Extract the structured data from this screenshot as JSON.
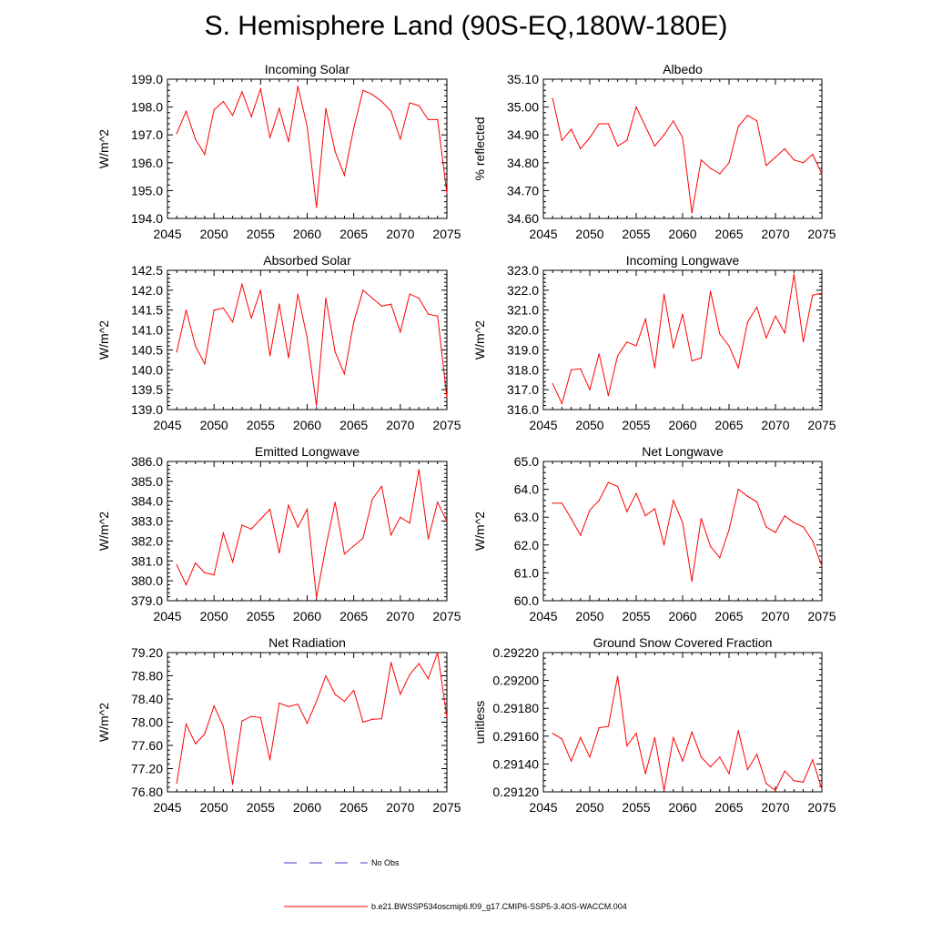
{
  "figure_title": "S. Hemisphere Land (90S-EQ,180W-180E)",
  "legend": {
    "obs_label": "No Obs",
    "model_label": "b.e21.BWSSP534oscmip6.f09_g17.CMIP6-SSP5-3.4OS-WACCM.004",
    "obs_color": "#3b3bcf",
    "model_color": "#ff0000"
  },
  "chart_data": [
    {
      "type": "line",
      "title": "Incoming Solar",
      "ylabel": "W/m^2",
      "xlim": [
        2045,
        2075
      ],
      "ylim": [
        194.0,
        199.0
      ],
      "yticks": [
        "194.0",
        "195.0",
        "196.0",
        "197.0",
        "198.0",
        "199.0"
      ],
      "xticks": [
        "2045",
        "2050",
        "2055",
        "2060",
        "2065",
        "2070",
        "2075"
      ],
      "x": [
        2046,
        2047,
        2048,
        2049,
        2050,
        2051,
        2052,
        2053,
        2054,
        2055,
        2056,
        2057,
        2058,
        2059,
        2060,
        2061,
        2062,
        2063,
        2064,
        2065,
        2066,
        2067,
        2068,
        2069,
        2070,
        2071,
        2072,
        2073,
        2074,
        2075
      ],
      "values": [
        197.05,
        197.85,
        196.85,
        196.3,
        197.9,
        198.2,
        197.7,
        198.55,
        197.65,
        198.65,
        196.9,
        197.95,
        196.75,
        198.75,
        197.3,
        194.4,
        197.95,
        196.4,
        195.55,
        197.25,
        198.6,
        198.45,
        198.2,
        197.85,
        196.85,
        198.15,
        198.05,
        197.55,
        197.55,
        194.9
      ],
      "series_name": "b.e21.BWSSP534oscmip6.f09_g17.CMIP6-SSP5-3.4OS-WACCM.004"
    },
    {
      "type": "line",
      "title": "Albedo",
      "ylabel": "% reflected",
      "xlim": [
        2045,
        2075
      ],
      "ylim": [
        34.6,
        35.1
      ],
      "yticks": [
        "34.60",
        "34.70",
        "34.80",
        "34.90",
        "35.00",
        "35.10"
      ],
      "xticks": [
        "2045",
        "2050",
        "2055",
        "2060",
        "2065",
        "2070",
        "2075"
      ],
      "x": [
        2046,
        2047,
        2048,
        2049,
        2050,
        2051,
        2052,
        2053,
        2054,
        2055,
        2056,
        2057,
        2058,
        2059,
        2060,
        2061,
        2062,
        2063,
        2064,
        2065,
        2066,
        2067,
        2068,
        2069,
        2070,
        2071,
        2072,
        2073,
        2074,
        2075
      ],
      "values": [
        35.03,
        34.88,
        34.92,
        34.85,
        34.89,
        34.94,
        34.94,
        34.86,
        34.88,
        35.0,
        34.93,
        34.86,
        34.9,
        34.95,
        34.89,
        34.62,
        34.81,
        34.78,
        34.76,
        34.8,
        34.93,
        34.97,
        34.95,
        34.79,
        34.82,
        34.85,
        34.81,
        34.8,
        34.83,
        34.76
      ],
      "series_name": "b.e21.BWSSP534oscmip6.f09_g17.CMIP6-SSP5-3.4OS-WACCM.004"
    },
    {
      "type": "line",
      "title": "Absorbed Solar",
      "ylabel": "W/m^2",
      "xlim": [
        2045,
        2075
      ],
      "ylim": [
        139.0,
        142.5
      ],
      "yticks": [
        "139.0",
        "139.5",
        "140.0",
        "140.5",
        "141.0",
        "141.5",
        "142.0",
        "142.5"
      ],
      "xticks": [
        "2045",
        "2050",
        "2055",
        "2060",
        "2065",
        "2070",
        "2075"
      ],
      "x": [
        2046,
        2047,
        2048,
        2049,
        2050,
        2051,
        2052,
        2053,
        2054,
        2055,
        2056,
        2057,
        2058,
        2059,
        2060,
        2061,
        2062,
        2063,
        2064,
        2065,
        2066,
        2067,
        2068,
        2069,
        2070,
        2071,
        2072,
        2073,
        2074,
        2075
      ],
      "values": [
        140.45,
        141.5,
        140.6,
        140.15,
        141.5,
        141.55,
        141.2,
        142.15,
        141.3,
        142.0,
        140.35,
        141.65,
        140.3,
        141.9,
        140.8,
        139.1,
        141.8,
        140.45,
        139.9,
        141.2,
        142.0,
        141.8,
        141.6,
        141.65,
        140.95,
        141.9,
        141.8,
        141.4,
        141.35,
        139.3
      ],
      "series_name": "b.e21.BWSSP534oscmip6.f09_g17.CMIP6-SSP5-3.4OS-WACCM.004"
    },
    {
      "type": "line",
      "title": "Incoming Longwave",
      "ylabel": "W/m^2",
      "xlim": [
        2045,
        2075
      ],
      "ylim": [
        316.0,
        323.0
      ],
      "yticks": [
        "316.0",
        "317.0",
        "318.0",
        "319.0",
        "320.0",
        "321.0",
        "322.0",
        "323.0"
      ],
      "xticks": [
        "2045",
        "2050",
        "2055",
        "2060",
        "2065",
        "2070",
        "2075"
      ],
      "x": [
        2046,
        2047,
        2048,
        2049,
        2050,
        2051,
        2052,
        2053,
        2054,
        2055,
        2056,
        2057,
        2058,
        2059,
        2060,
        2061,
        2062,
        2063,
        2064,
        2065,
        2066,
        2067,
        2068,
        2069,
        2070,
        2071,
        2072,
        2073,
        2074,
        2075
      ],
      "values": [
        317.3,
        316.3,
        318.0,
        318.05,
        317.0,
        318.8,
        316.7,
        318.7,
        319.4,
        319.2,
        320.55,
        318.1,
        321.8,
        319.1,
        320.8,
        318.45,
        318.6,
        321.95,
        319.8,
        319.2,
        318.1,
        320.4,
        321.15,
        319.6,
        320.7,
        319.85,
        322.8,
        319.4,
        321.75,
        321.85
      ],
      "series_name": "b.e21.BWSSP534oscmip6.f09_g17.CMIP6-SSP5-3.4OS-WACCM.004"
    },
    {
      "type": "line",
      "title": "Emitted Longwave",
      "ylabel": "W/m^2",
      "xlim": [
        2045,
        2075
      ],
      "ylim": [
        379.0,
        386.0
      ],
      "yticks": [
        "379.0",
        "380.0",
        "381.0",
        "382.0",
        "383.0",
        "384.0",
        "385.0",
        "386.0"
      ],
      "xticks": [
        "2045",
        "2050",
        "2055",
        "2060",
        "2065",
        "2070",
        "2075"
      ],
      "x": [
        2046,
        2047,
        2048,
        2049,
        2050,
        2051,
        2052,
        2053,
        2054,
        2055,
        2056,
        2057,
        2058,
        2059,
        2060,
        2061,
        2062,
        2063,
        2064,
        2065,
        2066,
        2067,
        2068,
        2069,
        2070,
        2071,
        2072,
        2073,
        2074,
        2075
      ],
      "values": [
        380.8,
        379.8,
        380.9,
        380.4,
        380.3,
        382.4,
        380.95,
        382.8,
        382.6,
        383.1,
        383.6,
        381.4,
        383.8,
        382.7,
        383.6,
        379.15,
        381.7,
        383.95,
        381.35,
        381.75,
        382.15,
        384.1,
        384.75,
        382.3,
        383.2,
        382.9,
        385.6,
        382.1,
        383.95,
        383.0
      ],
      "series_name": "b.e21.BWSSP534oscmip6.f09_g17.CMIP6-SSP5-3.4OS-WACCM.004"
    },
    {
      "type": "line",
      "title": "Net Longwave",
      "ylabel": "W/m^2",
      "xlim": [
        2045,
        2075
      ],
      "ylim": [
        60.0,
        65.0
      ],
      "yticks": [
        "60.0",
        "61.0",
        "62.0",
        "63.0",
        "64.0",
        "65.0"
      ],
      "xticks": [
        "2045",
        "2050",
        "2055",
        "2060",
        "2065",
        "2070",
        "2075"
      ],
      "x": [
        2046,
        2047,
        2048,
        2049,
        2050,
        2051,
        2052,
        2053,
        2054,
        2055,
        2056,
        2057,
        2058,
        2059,
        2060,
        2061,
        2062,
        2063,
        2064,
        2065,
        2066,
        2067,
        2068,
        2069,
        2070,
        2071,
        2072,
        2073,
        2074,
        2075
      ],
      "values": [
        63.5,
        63.5,
        62.95,
        62.35,
        63.25,
        63.6,
        64.25,
        64.1,
        63.2,
        63.85,
        63.05,
        63.3,
        62.0,
        63.6,
        62.8,
        60.7,
        62.95,
        61.95,
        61.55,
        62.55,
        64.0,
        63.75,
        63.55,
        62.65,
        62.45,
        63.05,
        62.8,
        62.65,
        62.15,
        61.25
      ],
      "series_name": "b.e21.BWSSP534oscmip6.f09_g17.CMIP6-SSP5-3.4OS-WACCM.004"
    },
    {
      "type": "line",
      "title": "Net Radiation",
      "ylabel": "W/m^2",
      "xlim": [
        2045,
        2075
      ],
      "ylim": [
        76.8,
        79.2
      ],
      "yticks": [
        "76.80",
        "77.20",
        "77.60",
        "78.00",
        "78.40",
        "78.80",
        "79.20"
      ],
      "xticks": [
        "2045",
        "2050",
        "2055",
        "2060",
        "2065",
        "2070",
        "2075"
      ],
      "x": [
        2046,
        2047,
        2048,
        2049,
        2050,
        2051,
        2052,
        2053,
        2054,
        2055,
        2056,
        2057,
        2058,
        2059,
        2060,
        2061,
        2062,
        2063,
        2064,
        2065,
        2066,
        2067,
        2068,
        2069,
        2070,
        2071,
        2072,
        2073,
        2074,
        2075
      ],
      "values": [
        76.95,
        77.97,
        77.63,
        77.8,
        78.28,
        77.93,
        76.93,
        78.02,
        78.1,
        78.08,
        77.35,
        78.33,
        78.27,
        78.31,
        77.98,
        78.36,
        78.8,
        78.48,
        78.36,
        78.55,
        78.0,
        78.05,
        78.06,
        79.03,
        78.48,
        78.82,
        79.01,
        78.75,
        79.2,
        78.08
      ],
      "series_name": "b.e21.BWSSP534oscmip6.f09_g17.CMIP6-SSP5-3.4OS-WACCM.004"
    },
    {
      "type": "line",
      "title": "Ground Snow Covered Fraction",
      "ylabel": "unitless",
      "xlim": [
        2045,
        2075
      ],
      "ylim": [
        0.2912,
        0.2922
      ],
      "yticks": [
        "0.29120",
        "0.29140",
        "0.29160",
        "0.29180",
        "0.29200",
        "0.29220"
      ],
      "xticks": [
        "2045",
        "2050",
        "2055",
        "2060",
        "2065",
        "2070",
        "2075"
      ],
      "x": [
        2046,
        2047,
        2048,
        2049,
        2050,
        2051,
        2052,
        2053,
        2054,
        2055,
        2056,
        2057,
        2058,
        2059,
        2060,
        2061,
        2062,
        2063,
        2064,
        2065,
        2066,
        2067,
        2068,
        2069,
        2070,
        2071,
        2072,
        2073,
        2074,
        2075
      ],
      "values": [
        0.29162,
        0.29158,
        0.29142,
        0.29159,
        0.29145,
        0.29166,
        0.29167,
        0.29203,
        0.29153,
        0.29162,
        0.29133,
        0.29159,
        0.29121,
        0.29159,
        0.29142,
        0.29163,
        0.29145,
        0.29138,
        0.29145,
        0.29133,
        0.29164,
        0.29136,
        0.29147,
        0.29126,
        0.29121,
        0.29135,
        0.29128,
        0.29127,
        0.29143,
        0.29122
      ],
      "series_name": "b.e21.BWSSP534oscmip6.f09_g17.CMIP6-SSP5-3.4OS-WACCM.004"
    }
  ]
}
